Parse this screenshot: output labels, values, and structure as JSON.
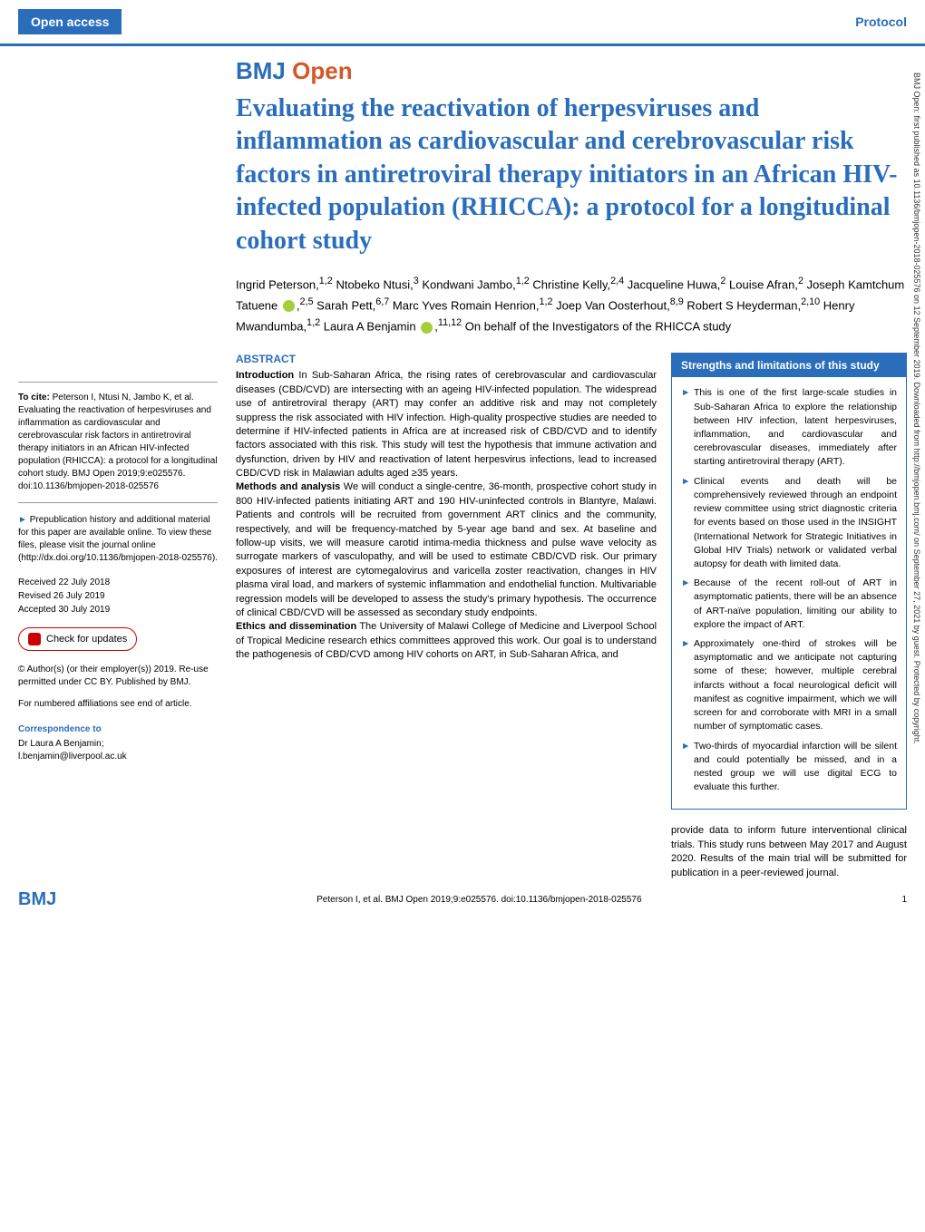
{
  "header": {
    "open_access": "Open access",
    "protocol": "Protocol"
  },
  "journal": {
    "name_part1": "BMJ",
    "name_part2": "Open"
  },
  "title": "Evaluating the reactivation of herpesviruses and inflammation as cardiovascular and cerebrovascular risk factors in antiretroviral therapy initiators in an African HIV-infected population (RHICCA): a protocol for a longitudinal cohort study",
  "authors_html": "Ingrid Peterson,<sup>1,2</sup> Ntobeko Ntusi,<sup>3</sup> Kondwani Jambo,<sup>1,2</sup> Christine Kelly,<sup>2,4</sup> Jacqueline Huwa,<sup>2</sup> Louise Afran,<sup>2</sup> Joseph Kamtchum Tatuene <span class='orcid'></span>,<sup>2,5</sup> Sarah Pett,<sup>6,7</sup> Marc Yves Romain Henrion,<sup>1,2</sup> Joep Van Oosterhout,<sup>8,9</sup> Robert S Heyderman,<sup>2,10</sup> Henry Mwandumba,<sup>1,2</sup> Laura A Benjamin <span class='orcid'></span>,<sup>11,12</sup> On behalf of the Investigators of the RHICCA study",
  "cite": {
    "label": "To cite:",
    "text": "Peterson I, Ntusi N, Jambo K, et al. Evaluating the reactivation of herpesviruses and inflammation as cardiovascular and cerebrovascular risk factors in antiretroviral therapy initiators in an African HIV-infected population (RHICCA): a protocol for a longitudinal cohort study. BMJ Open 2019;9:e025576. doi:10.1136/bmjopen-2018-025576"
  },
  "prepub": "Prepublication history and additional material for this paper are available online. To view these files, please visit the journal online (http://dx.doi.org/10.1136/bmjopen-2018-025576).",
  "dates": {
    "received": "Received 22 July 2018",
    "revised": "Revised 26 July 2019",
    "accepted": "Accepted 30 July 2019"
  },
  "updates_btn": "Check for updates",
  "copyright": "© Author(s) (or their employer(s)) 2019. Re-use permitted under CC BY. Published by BMJ.",
  "affil_note": "For numbered affiliations see end of article.",
  "correspondence": {
    "hdr": "Correspondence to",
    "name": "Dr Laura A Benjamin;",
    "email": "l.benjamin@liverpool.ac.uk"
  },
  "abstract": {
    "heading": "ABSTRACT",
    "intro_label": "Introduction",
    "intro": "In Sub-Saharan Africa, the rising rates of cerebrovascular and cardiovascular diseases (CBD/CVD) are intersecting with an ageing HIV-infected population. The widespread use of antiretroviral therapy (ART) may confer an additive risk and may not completely suppress the risk associated with HIV infection. High-quality prospective studies are needed to determine if HIV-infected patients in Africa are at increased risk of CBD/CVD and to identify factors associated with this risk. This study will test the hypothesis that immune activation and dysfunction, driven by HIV and reactivation of latent herpesvirus infections, lead to increased CBD/CVD risk in Malawian adults aged ≥35 years.",
    "methods_label": "Methods and analysis",
    "methods": "We will conduct a single-centre, 36-month, prospective cohort study in 800 HIV-infected patients initiating ART and 190 HIV-uninfected controls in Blantyre, Malawi. Patients and controls will be recruited from government ART clinics and the community, respectively, and will be frequency-matched by 5-year age band and sex. At baseline and follow-up visits, we will measure carotid intima-media thickness and pulse wave velocity as surrogate markers of vasculopathy, and will be used to estimate CBD/CVD risk. Our primary exposures of interest are cytomegalovirus and varicella zoster reactivation, changes in HIV plasma viral load, and markers of systemic inflammation and endothelial function. Multivariable regression models will be developed to assess the study's primary hypothesis. The occurrence of clinical CBD/CVD will be assessed as secondary study endpoints.",
    "ethics_label": "Ethics and dissemination",
    "ethics": "The University of Malawi College of Medicine and Liverpool School of Tropical Medicine research ethics committees approved this work. Our goal is to understand the pathogenesis of CBD/CVD among HIV cohorts on ART, in Sub-Saharan Africa, and"
  },
  "strengths_box": {
    "title": "Strengths and limitations of this study",
    "items": [
      "This is one of the first large-scale studies in Sub-Saharan Africa to explore the relationship between HIV infection, latent herpesviruses, inflammation, and cardiovascular and cerebrovascular diseases, immediately after starting antiretroviral therapy (ART).",
      "Clinical events and death will be comprehensively reviewed through an endpoint review committee using strict diagnostic criteria for events based on those used in the INSIGHT (International Network for Strategic Initiatives in Global HIV Trials) network or validated verbal autopsy for death with limited data.",
      "Because of the recent roll-out of ART in asymptomatic patients, there will be an absence of ART-naïve population, limiting our ability to explore the impact of ART.",
      "Approximately one-third of strokes will be asymptomatic and we anticipate not capturing some of these; however, multiple cerebral infarcts without a focal neurological deficit will manifest as cognitive impairment, which we will screen for and corroborate with MRI in a small number of symptomatic cases.",
      "Two-thirds of myocardial infarction will be silent and could potentially be missed, and in a nested group we will use digital ECG to evaluate this further."
    ]
  },
  "post_box": "provide data to inform future interventional clinical trials. This study runs between May 2017 and August 2020. Results of the main trial will be submitted for publication in a peer-reviewed journal.",
  "footer": {
    "logo": "BMJ",
    "citation": "Peterson I, et al. BMJ Open 2019;9:e025576. doi:10.1136/bmjopen-2018-025576",
    "page": "1"
  },
  "side_note": "BMJ Open: first published as 10.1136/bmjopen-2018-025576 on 12 September 2019. Downloaded from http://bmjopen.bmj.com/ on September 27, 2021 by guest. Protected by copyright.",
  "colors": {
    "brand_blue": "#2a6ebb",
    "brand_orange": "#d4582a",
    "orcid_green": "#a6ce39",
    "red": "#c00"
  }
}
